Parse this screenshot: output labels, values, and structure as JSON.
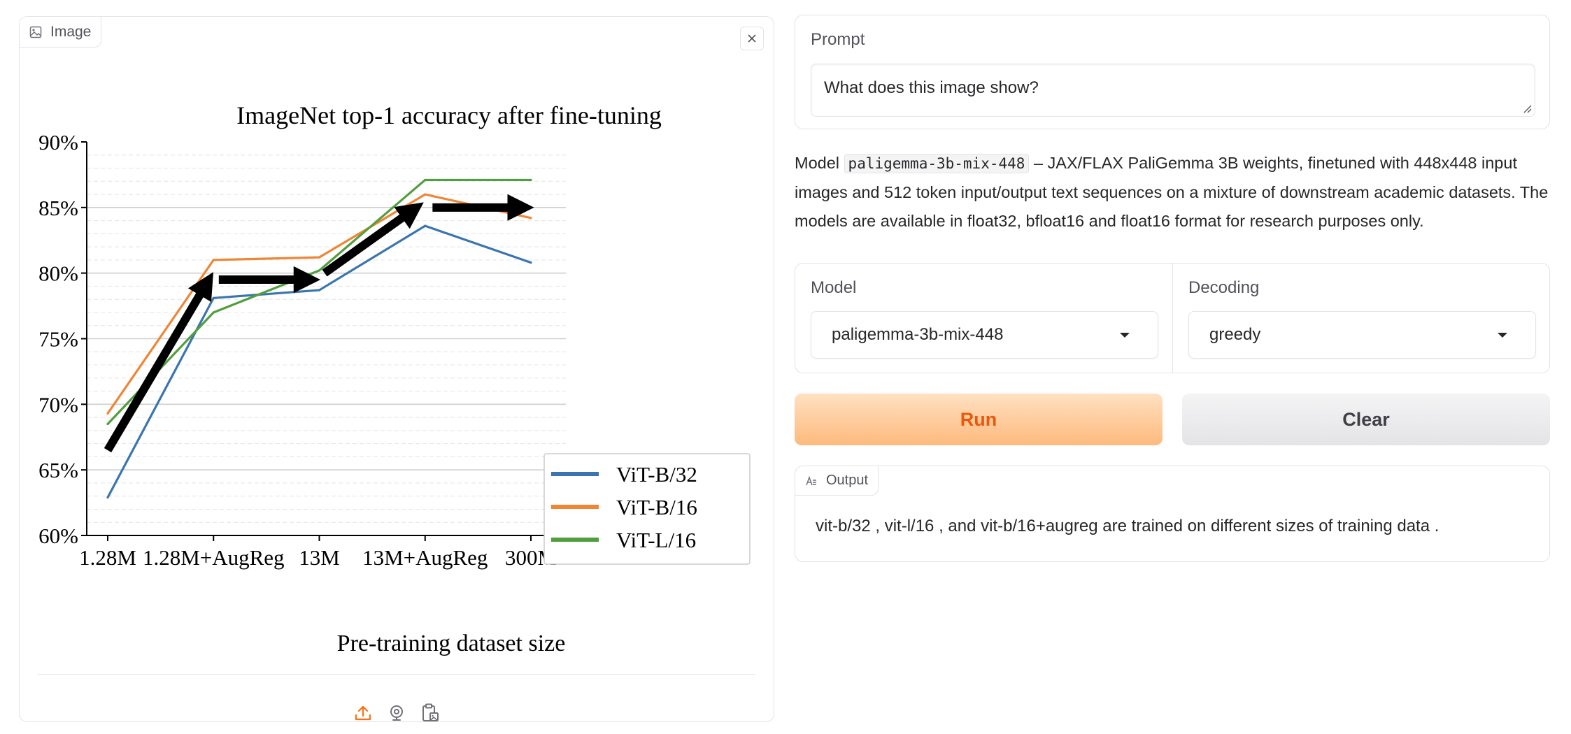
{
  "image_panel": {
    "label": "Image",
    "badge_icon": "image-icon",
    "close_icon": "close-icon",
    "tools": [
      "upload-icon",
      "webcam-icon",
      "clipboard-icon"
    ]
  },
  "chart_data": {
    "type": "line",
    "title": "ImageNet top-1 accuracy after fine-tuning",
    "xlabel": "Pre-training dataset size",
    "ylabel": "",
    "categories": [
      "1.28M",
      "1.28M+AugReg",
      "13M",
      "13M+AugReg",
      "300M"
    ],
    "ylim": [
      60,
      90
    ],
    "yticks": [
      "60%",
      "65%",
      "70%",
      "75%",
      "80%",
      "85%",
      "90%"
    ],
    "grid": true,
    "legend_position": "lower-right",
    "series": [
      {
        "name": "ViT-B/32",
        "color": "#3b75af",
        "values": [
          62.9,
          78.1,
          78.7,
          83.6,
          80.8
        ]
      },
      {
        "name": "ViT-B/16",
        "color": "#ef8636",
        "values": [
          69.3,
          81.0,
          81.2,
          86.0,
          84.2
        ]
      },
      {
        "name": "ViT-L/16",
        "color": "#519e3e",
        "values": [
          68.5,
          77.0,
          80.2,
          87.1,
          87.1
        ]
      }
    ],
    "annotations": [
      {
        "kind": "arrow",
        "from": [
          0,
          66.5
        ],
        "to": [
          1,
          79.2
        ]
      },
      {
        "kind": "arrow",
        "from": [
          1.05,
          79.5
        ],
        "to": [
          1.95,
          79.5
        ]
      },
      {
        "kind": "arrow",
        "from": [
          2.05,
          80.0
        ],
        "to": [
          2.95,
          84.8
        ]
      },
      {
        "kind": "arrow",
        "from": [
          3.07,
          85.0
        ],
        "to": [
          3.97,
          85.0
        ]
      }
    ]
  },
  "prompt": {
    "label": "Prompt",
    "value": "What does this image show?"
  },
  "description": {
    "prefix": "Model ",
    "model_code": "paligemma-3b-mix-448",
    "suffix": " – JAX/FLAX PaliGemma 3B weights, finetuned with 448x448 input images and 512 token input/output text sequences on a mixture of downstream academic datasets. The models are available in float32, bfloat16 and float16 format for research purposes only."
  },
  "model_select": {
    "label": "Model",
    "value": "paligemma-3b-mix-448"
  },
  "decoding_select": {
    "label": "Decoding",
    "value": "greedy"
  },
  "buttons": {
    "run": "Run",
    "clear": "Clear"
  },
  "output": {
    "label": "Output",
    "text": "vit-b/32 , vit-l/16 , and vit-b/16+augreg are trained on different sizes of training data ."
  },
  "colors": {
    "accent": "#ea580c",
    "border": "#e4e4e7",
    "run_bg": "#fdba7d"
  }
}
